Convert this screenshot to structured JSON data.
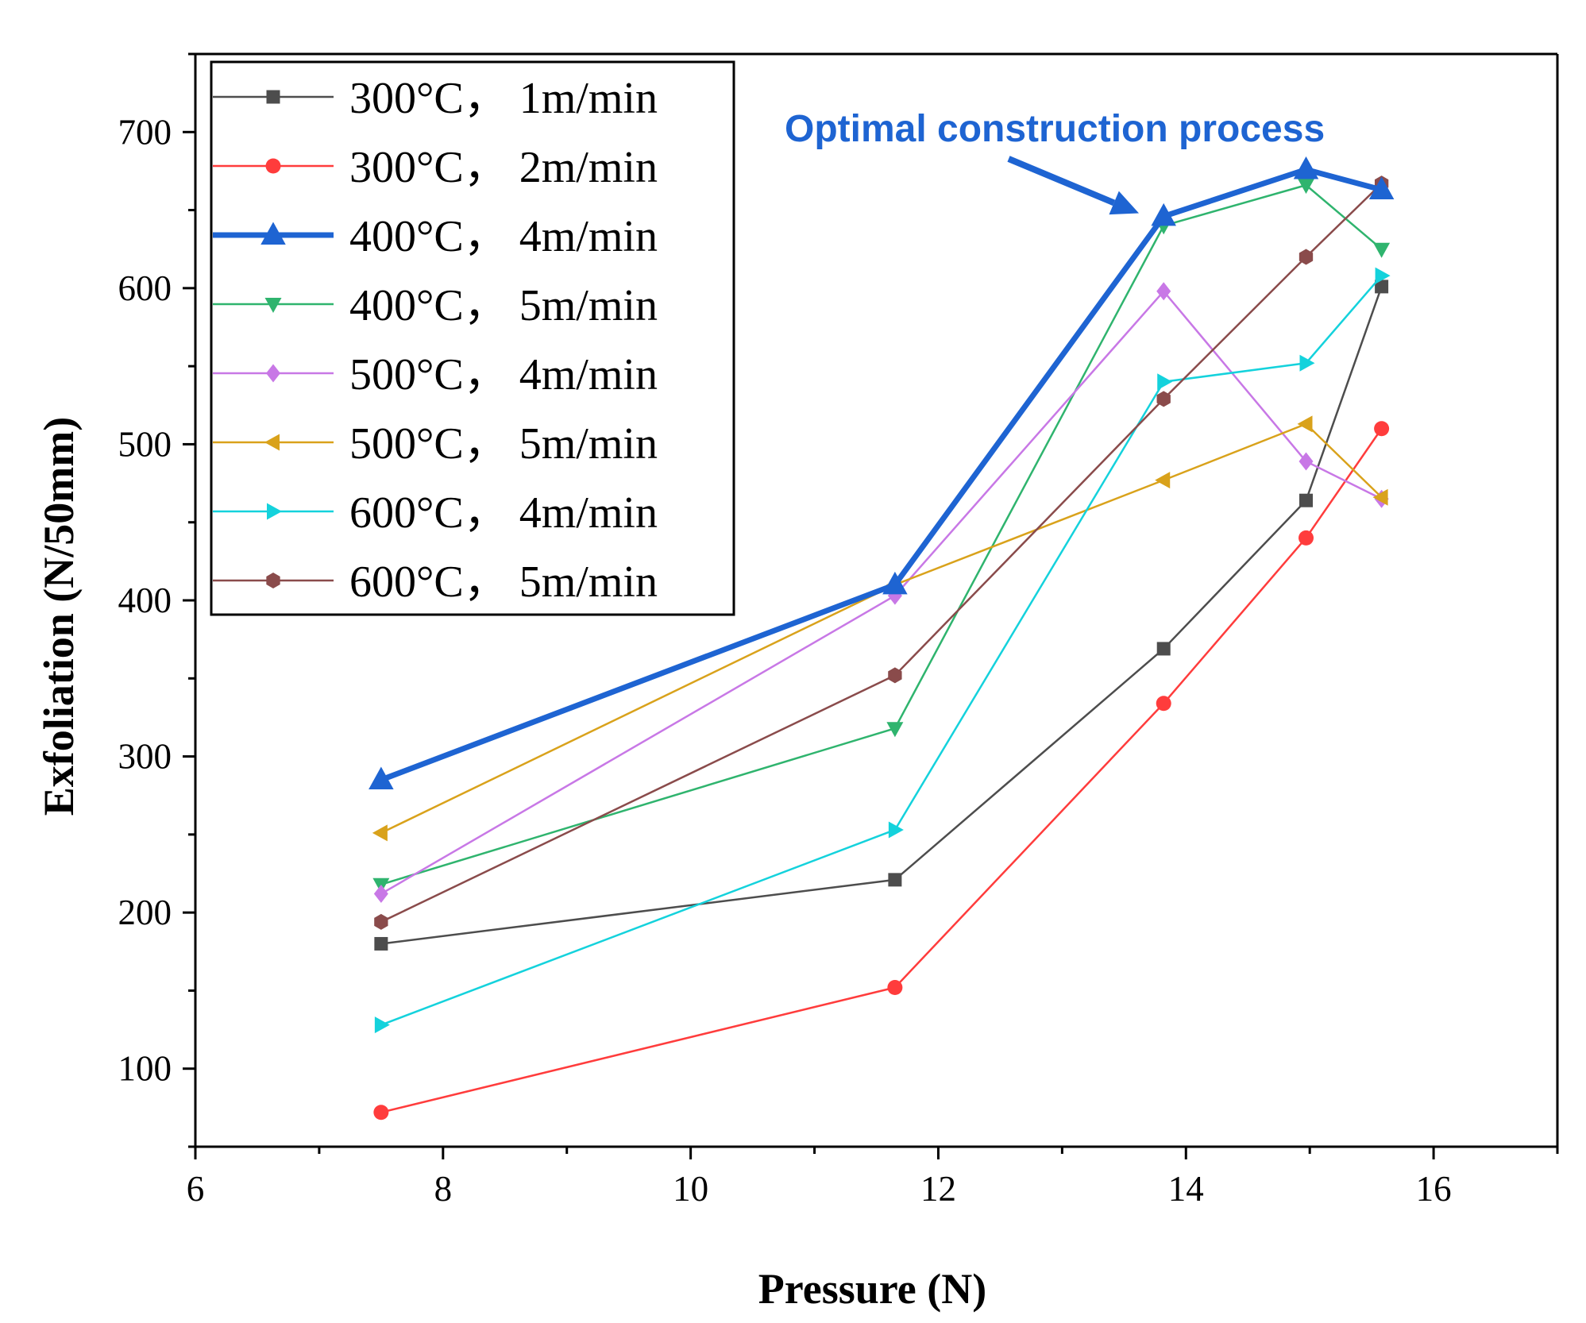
{
  "chart_data": {
    "type": "line",
    "xlabel": "Pressure (N)",
    "ylabel": "Exfoliation (N/50mm)",
    "xlim": [
      6,
      17
    ],
    "ylim": [
      50,
      750
    ],
    "xticks": [
      6,
      8,
      10,
      12,
      14,
      16
    ],
    "yticks": [
      100,
      200,
      300,
      400,
      500,
      600,
      700
    ],
    "x": [
      7.5,
      11.65,
      13.82,
      14.97,
      15.58
    ],
    "legend_position": "top-left",
    "series": [
      {
        "name": "300°C， 1m/min",
        "color": "#4d4d4d",
        "marker": "square",
        "values": [
          180,
          221,
          369,
          464,
          601
        ]
      },
      {
        "name": "300°C， 2m/min",
        "color": "#ff3c3c",
        "marker": "circle",
        "values": [
          72,
          152,
          334,
          440,
          510
        ]
      },
      {
        "name": "400°C， 4m/min",
        "color": "#1e64d2",
        "marker": "triangle-up",
        "emphasis": true,
        "values": [
          285,
          410,
          646,
          676,
          663
        ]
      },
      {
        "name": "400°C， 5m/min",
        "color": "#2fb46e",
        "marker": "triangle-down",
        "values": [
          218,
          318,
          640,
          666,
          625
        ]
      },
      {
        "name": "500°C， 4m/min",
        "color": "#c878e6",
        "marker": "diamond",
        "values": [
          212,
          403,
          598,
          489,
          465
        ]
      },
      {
        "name": "500°C， 5m/min",
        "color": "#d9a21b",
        "marker": "triangle-left",
        "values": [
          251,
          410,
          477,
          513,
          466
        ]
      },
      {
        "name": "600°C， 4m/min",
        "color": "#14d2dc",
        "marker": "triangle-right",
        "values": [
          128,
          253,
          540,
          552,
          608
        ]
      },
      {
        "name": "600°C， 5m/min",
        "color": "#8a4b4b",
        "marker": "hexagon",
        "values": [
          194,
          352,
          529,
          620,
          667
        ]
      }
    ],
    "annotation": {
      "text": "Optimal construction process",
      "color": "#1e64d2",
      "arrow_target": [
        13.62,
        648
      ]
    }
  }
}
